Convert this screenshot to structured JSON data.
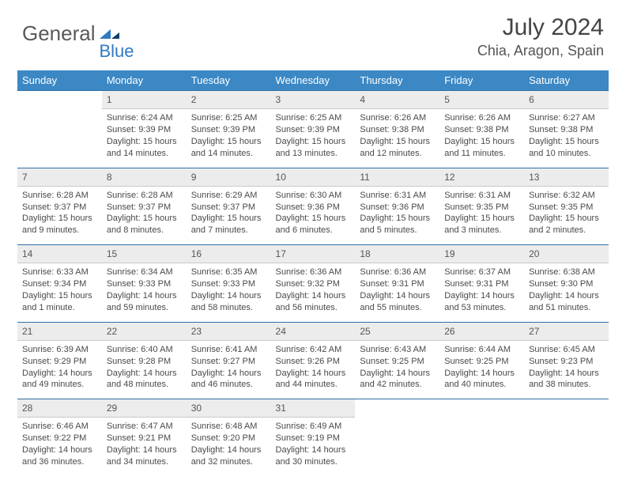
{
  "brand": {
    "general": "General",
    "blue": "Blue"
  },
  "title": "July 2024",
  "location": "Chia, Aragon, Spain",
  "header_bg": "#3b88c4",
  "daynum_bg": "#ececec",
  "rule_color": "#2f6fa6",
  "weekdays": [
    "Sunday",
    "Monday",
    "Tuesday",
    "Wednesday",
    "Thursday",
    "Friday",
    "Saturday"
  ],
  "weeks": [
    {
      "nums": [
        "",
        "1",
        "2",
        "3",
        "4",
        "5",
        "6"
      ],
      "cells": [
        null,
        {
          "sr": "6:24 AM",
          "ss": "9:39 PM",
          "dl": "15 hours and 14 minutes."
        },
        {
          "sr": "6:25 AM",
          "ss": "9:39 PM",
          "dl": "15 hours and 14 minutes."
        },
        {
          "sr": "6:25 AM",
          "ss": "9:39 PM",
          "dl": "15 hours and 13 minutes."
        },
        {
          "sr": "6:26 AM",
          "ss": "9:38 PM",
          "dl": "15 hours and 12 minutes."
        },
        {
          "sr": "6:26 AM",
          "ss": "9:38 PM",
          "dl": "15 hours and 11 minutes."
        },
        {
          "sr": "6:27 AM",
          "ss": "9:38 PM",
          "dl": "15 hours and 10 minutes."
        }
      ]
    },
    {
      "nums": [
        "7",
        "8",
        "9",
        "10",
        "11",
        "12",
        "13"
      ],
      "cells": [
        {
          "sr": "6:28 AM",
          "ss": "9:37 PM",
          "dl": "15 hours and 9 minutes."
        },
        {
          "sr": "6:28 AM",
          "ss": "9:37 PM",
          "dl": "15 hours and 8 minutes."
        },
        {
          "sr": "6:29 AM",
          "ss": "9:37 PM",
          "dl": "15 hours and 7 minutes."
        },
        {
          "sr": "6:30 AM",
          "ss": "9:36 PM",
          "dl": "15 hours and 6 minutes."
        },
        {
          "sr": "6:31 AM",
          "ss": "9:36 PM",
          "dl": "15 hours and 5 minutes."
        },
        {
          "sr": "6:31 AM",
          "ss": "9:35 PM",
          "dl": "15 hours and 3 minutes."
        },
        {
          "sr": "6:32 AM",
          "ss": "9:35 PM",
          "dl": "15 hours and 2 minutes."
        }
      ]
    },
    {
      "nums": [
        "14",
        "15",
        "16",
        "17",
        "18",
        "19",
        "20"
      ],
      "cells": [
        {
          "sr": "6:33 AM",
          "ss": "9:34 PM",
          "dl": "15 hours and 1 minute."
        },
        {
          "sr": "6:34 AM",
          "ss": "9:33 PM",
          "dl": "14 hours and 59 minutes."
        },
        {
          "sr": "6:35 AM",
          "ss": "9:33 PM",
          "dl": "14 hours and 58 minutes."
        },
        {
          "sr": "6:36 AM",
          "ss": "9:32 PM",
          "dl": "14 hours and 56 minutes."
        },
        {
          "sr": "6:36 AM",
          "ss": "9:31 PM",
          "dl": "14 hours and 55 minutes."
        },
        {
          "sr": "6:37 AM",
          "ss": "9:31 PM",
          "dl": "14 hours and 53 minutes."
        },
        {
          "sr": "6:38 AM",
          "ss": "9:30 PM",
          "dl": "14 hours and 51 minutes."
        }
      ]
    },
    {
      "nums": [
        "21",
        "22",
        "23",
        "24",
        "25",
        "26",
        "27"
      ],
      "cells": [
        {
          "sr": "6:39 AM",
          "ss": "9:29 PM",
          "dl": "14 hours and 49 minutes."
        },
        {
          "sr": "6:40 AM",
          "ss": "9:28 PM",
          "dl": "14 hours and 48 minutes."
        },
        {
          "sr": "6:41 AM",
          "ss": "9:27 PM",
          "dl": "14 hours and 46 minutes."
        },
        {
          "sr": "6:42 AM",
          "ss": "9:26 PM",
          "dl": "14 hours and 44 minutes."
        },
        {
          "sr": "6:43 AM",
          "ss": "9:25 PM",
          "dl": "14 hours and 42 minutes."
        },
        {
          "sr": "6:44 AM",
          "ss": "9:25 PM",
          "dl": "14 hours and 40 minutes."
        },
        {
          "sr": "6:45 AM",
          "ss": "9:23 PM",
          "dl": "14 hours and 38 minutes."
        }
      ]
    },
    {
      "nums": [
        "28",
        "29",
        "30",
        "31",
        "",
        "",
        ""
      ],
      "cells": [
        {
          "sr": "6:46 AM",
          "ss": "9:22 PM",
          "dl": "14 hours and 36 minutes."
        },
        {
          "sr": "6:47 AM",
          "ss": "9:21 PM",
          "dl": "14 hours and 34 minutes."
        },
        {
          "sr": "6:48 AM",
          "ss": "9:20 PM",
          "dl": "14 hours and 32 minutes."
        },
        {
          "sr": "6:49 AM",
          "ss": "9:19 PM",
          "dl": "14 hours and 30 minutes."
        },
        null,
        null,
        null
      ]
    }
  ],
  "labels": {
    "sunrise": "Sunrise:",
    "sunset": "Sunset:",
    "daylight": "Daylight:"
  }
}
